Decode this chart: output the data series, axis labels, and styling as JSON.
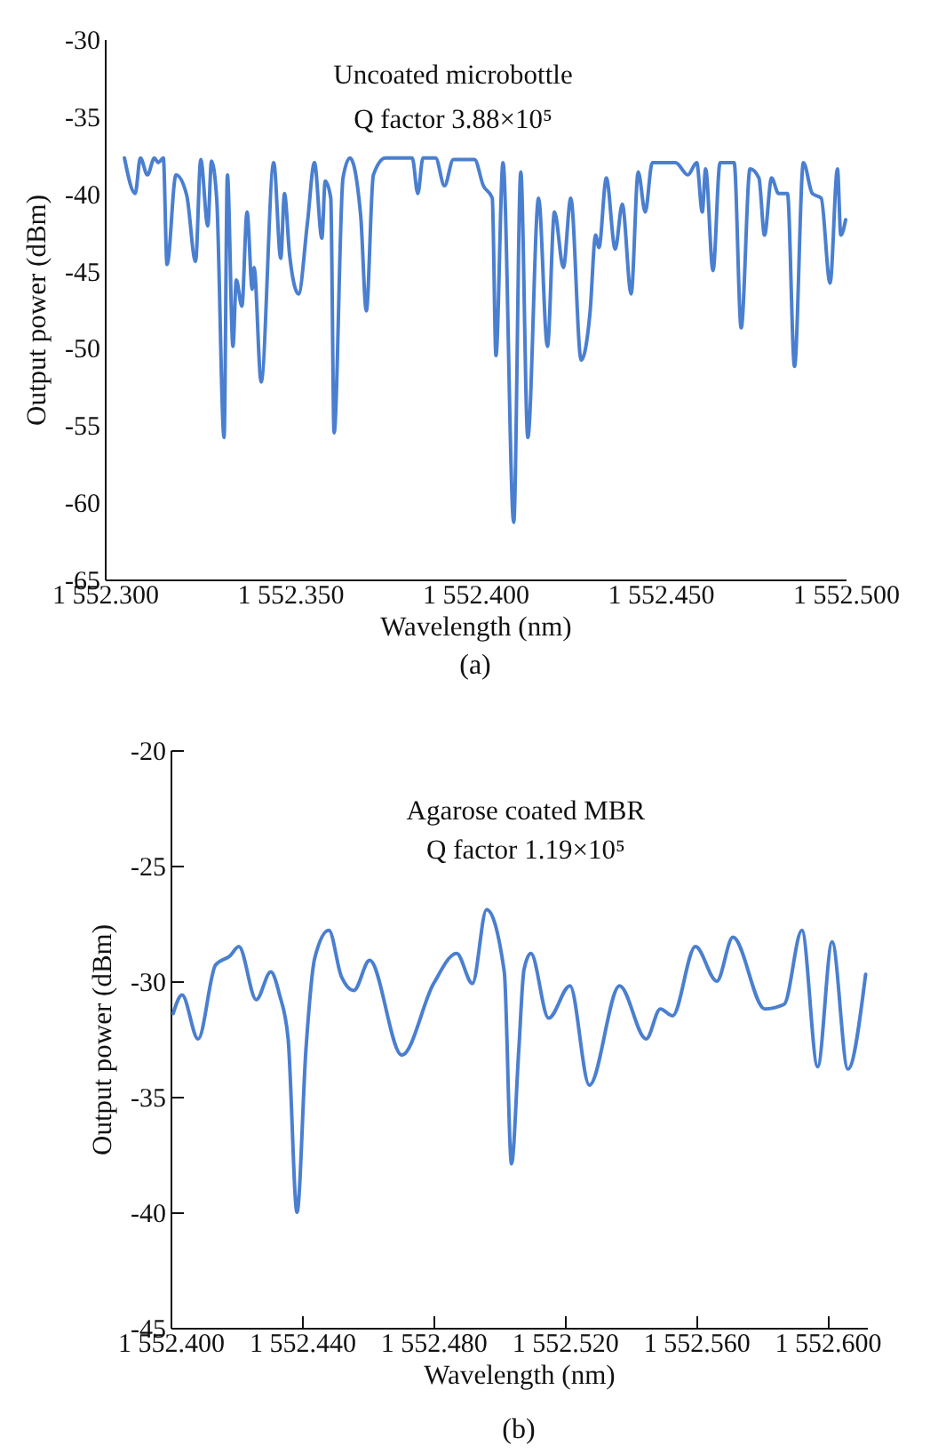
{
  "chart_data": [
    {
      "type": "line",
      "xlabel": "Wavelength (nm)",
      "ylabel": "Output power (dBm)",
      "annotations": [
        "Uncoated microbottle",
        "Q factor 3.88×10⁵",
        "(a)"
      ],
      "xlim": [
        1552.3,
        1552.5
      ],
      "ylim": [
        -65,
        -30
      ],
      "xticks": [
        {
          "value": 1552.3,
          "label": "1 552.300"
        },
        {
          "value": 1552.35,
          "label": "1 552.350"
        },
        {
          "value": 1552.4,
          "label": "1 552.400"
        },
        {
          "value": 1552.45,
          "label": "1 552.450"
        },
        {
          "value": 1552.5,
          "label": "1 552.500"
        }
      ],
      "yticks": [
        -65,
        -60,
        -55,
        -50,
        -45,
        -40,
        -35,
        -30
      ],
      "x": [
        1552.3053,
        1552.3082,
        1552.3096,
        1552.3115,
        1552.3134,
        1552.3144,
        1552.3158,
        1552.3168,
        1552.3192,
        1552.3221,
        1552.3245,
        1552.3259,
        1552.3278,
        1552.3288,
        1552.3302,
        1552.3322,
        1552.3331,
        1552.3346,
        1552.3355,
        1552.337,
        1552.3384,
        1552.3398,
        1552.3403,
        1552.3422,
        1552.3456,
        1552.3475,
        1552.3485,
        1552.3499,
        1552.3523,
        1552.3547,
        1552.3566,
        1552.3586,
        1552.3595,
        1552.361,
        1552.3619,
        1552.3643,
        1552.3662,
        1552.3686,
        1552.3691,
        1552.3706,
        1552.3725,
        1552.3758,
        1552.383,
        1552.3845,
        1552.3859,
        1552.3893,
        1552.3917,
        1552.3941,
        1552.3965,
        1552.3998,
        1552.4022,
        1552.4046,
        1552.4056,
        1552.4075,
        1552.4104,
        1552.4123,
        1552.4142,
        1552.4171,
        1552.4195,
        1552.4214,
        1552.4238,
        1552.4258,
        1552.4286,
        1552.431,
        1552.4325,
        1552.4334,
        1552.4354,
        1552.4378,
        1552.4397,
        1552.4421,
        1552.444,
        1552.4459,
        1552.4478,
        1552.4507,
        1552.4541,
        1552.4574,
        1552.4598,
        1552.4613,
        1552.4622,
        1552.4642,
        1552.4661,
        1552.4699,
        1552.4718,
        1552.4742,
        1552.4766,
        1552.4781,
        1552.48,
        1552.4819,
        1552.4843,
        1552.4862,
        1552.4886,
        1552.491,
        1552.4934,
        1552.4958,
        1552.4978,
        1552.4987,
        1552.5
      ],
      "series": [
        {
          "color": "#4a7fd0",
          "values": [
            -37.7,
            -40,
            -37.7,
            -38.8,
            -37.7,
            -38,
            -37.7,
            -44.6,
            -38.8,
            -40.1,
            -44.4,
            -37.8,
            -42.1,
            -37.9,
            -40.3,
            -55.8,
            -38.8,
            -49.9,
            -45.6,
            -47.3,
            -41.2,
            -46.2,
            -44.8,
            -52.2,
            -38,
            -44.2,
            -40,
            -44,
            -46.5,
            -41.9,
            -38,
            -42.9,
            -39.2,
            -40.3,
            -55.5,
            -39,
            -37.7,
            -40.3,
            -41.5,
            -47.6,
            -38.8,
            -37.7,
            -37.7,
            -40,
            -37.7,
            -37.7,
            -39.5,
            -37.8,
            -37.8,
            -37.8,
            -39.5,
            -40.3,
            -50.5,
            -38,
            -61.3,
            -38.6,
            -55.8,
            -40.3,
            -49.9,
            -41.2,
            -44.8,
            -40.3,
            -50.8,
            -47.7,
            -42.7,
            -43.5,
            -39,
            -43.6,
            -40.7,
            -46.5,
            -38.6,
            -41.2,
            -38,
            -38,
            -38,
            -38.8,
            -38,
            -41.2,
            -38.4,
            -45,
            -38,
            -38,
            -48.7,
            -38.4,
            -39,
            -42.7,
            -39,
            -40,
            -40,
            -51.2,
            -38,
            -40,
            -40.3,
            -45.8,
            -38.4,
            -42.7,
            -41.7
          ]
        }
      ]
    },
    {
      "type": "line",
      "xlabel": "Wavelength (nm)",
      "ylabel": "Output power (dBm)",
      "annotations": [
        "Agarose coated MBR",
        "Q factor 1.19×10⁵",
        "(b)"
      ],
      "xlim": [
        1552.4,
        1552.612
      ],
      "ylim": [
        -45,
        -20
      ],
      "xticks": [
        {
          "value": 1552.4,
          "label": "1 552.400"
        },
        {
          "value": 1552.44,
          "label": "1 552.440"
        },
        {
          "value": 1552.48,
          "label": "1 552.480"
        },
        {
          "value": 1552.52,
          "label": "1 552.520"
        },
        {
          "value": 1552.56,
          "label": "1 552.560"
        },
        {
          "value": 1552.6,
          "label": "1 552.600"
        }
      ],
      "yticks": [
        -45,
        -40,
        -35,
        -30,
        -25,
        -20
      ],
      "x": [
        1552.4008,
        1552.4035,
        1552.4084,
        1552.4137,
        1552.4181,
        1552.4208,
        1552.4261,
        1552.4305,
        1552.4332,
        1552.4358,
        1552.4385,
        1552.4412,
        1552.4439,
        1552.4482,
        1552.452,
        1552.4558,
        1552.4606,
        1552.4704,
        1552.4801,
        1552.4871,
        1552.4919,
        1552.4962,
        1552.5016,
        1552.5038,
        1552.506,
        1552.5076,
        1552.5097,
        1552.5151,
        1552.5216,
        1552.5275,
        1552.5367,
        1552.5448,
        1552.5491,
        1552.5528,
        1552.5598,
        1552.5663,
        1552.5712,
        1552.5809,
        1552.5868,
        1552.5922,
        1552.597,
        1552.6014,
        1552.6062,
        1552.6116
      ],
      "series": [
        {
          "color": "#4a7fd0",
          "values": [
            -31.4,
            -30.6,
            -32.5,
            -29.3,
            -28.9,
            -28.5,
            -30.8,
            -29.6,
            -30.6,
            -32.5,
            -40,
            -33,
            -29,
            -27.8,
            -29.8,
            -30.4,
            -29.1,
            -33.2,
            -30.1,
            -28.8,
            -30.1,
            -26.9,
            -29.6,
            -37.9,
            -33,
            -29.5,
            -28.8,
            -31.6,
            -30.2,
            -34.5,
            -30.2,
            -32.5,
            -31.2,
            -31.5,
            -28.5,
            -30,
            -28.1,
            -31.2,
            -31,
            -27.8,
            -33.7,
            -28.3,
            -33.8,
            -29.7
          ]
        }
      ]
    }
  ]
}
